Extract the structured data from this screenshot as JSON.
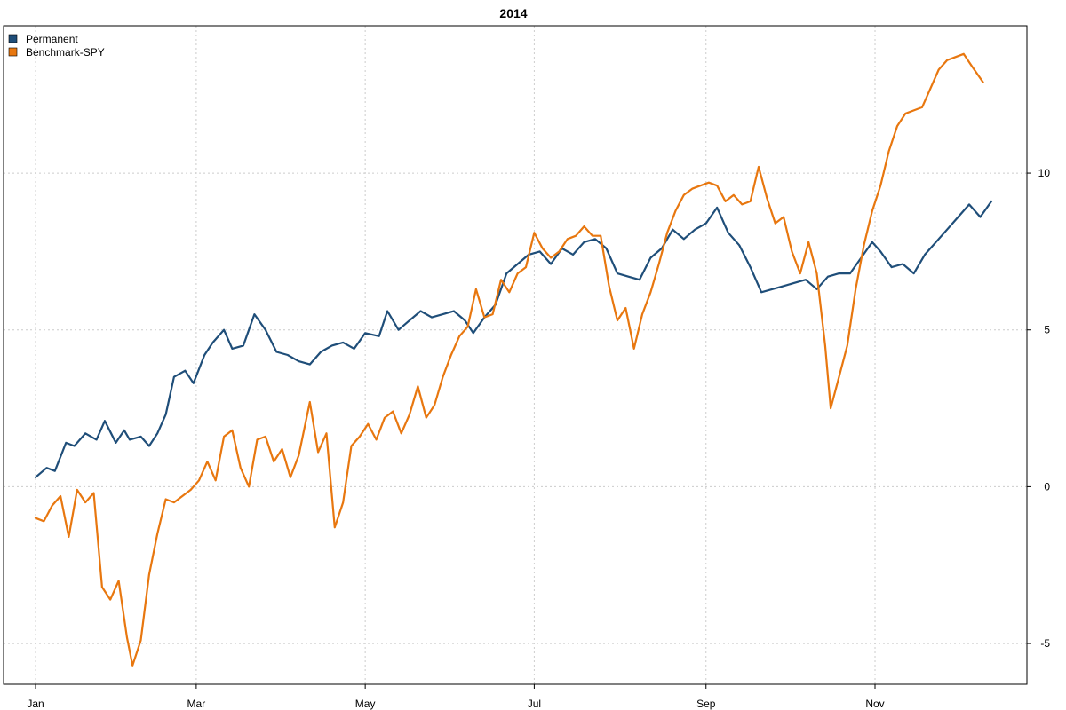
{
  "chart_data": {
    "type": "line",
    "title": "2014",
    "xlabel": "",
    "ylabel": "",
    "x_ticks": [
      "Jan",
      "Mar",
      "May",
      "Jul",
      "Sep",
      "Nov"
    ],
    "y_ticks": [
      -5,
      0,
      5,
      10
    ],
    "ylim": [
      -6.3,
      14.7
    ],
    "y_axis_side": "right",
    "grid": true,
    "legend_position": "top-left",
    "series": [
      {
        "name": "Permanent",
        "color": "#1f4e79",
        "points": [
          [
            "2014-01-02",
            0.3
          ],
          [
            "2014-01-06",
            0.6
          ],
          [
            "2014-01-09",
            0.5
          ],
          [
            "2014-01-13",
            1.4
          ],
          [
            "2014-01-16",
            1.3
          ],
          [
            "2014-01-20",
            1.7
          ],
          [
            "2014-01-24",
            1.5
          ],
          [
            "2014-01-27",
            2.1
          ],
          [
            "2014-01-31",
            1.4
          ],
          [
            "2014-02-03",
            1.8
          ],
          [
            "2014-02-05",
            1.5
          ],
          [
            "2014-02-09",
            1.6
          ],
          [
            "2014-02-12",
            1.3
          ],
          [
            "2014-02-15",
            1.7
          ],
          [
            "2014-02-18",
            2.3
          ],
          [
            "2014-02-21",
            3.5
          ],
          [
            "2014-02-25",
            3.7
          ],
          [
            "2014-02-28",
            3.3
          ],
          [
            "2014-03-04",
            4.2
          ],
          [
            "2014-03-07",
            4.6
          ],
          [
            "2014-03-11",
            5.0
          ],
          [
            "2014-03-14",
            4.4
          ],
          [
            "2014-03-18",
            4.5
          ],
          [
            "2014-03-22",
            5.5
          ],
          [
            "2014-03-26",
            5.0
          ],
          [
            "2014-03-30",
            4.3
          ],
          [
            "2014-04-03",
            4.2
          ],
          [
            "2014-04-07",
            4.0
          ],
          [
            "2014-04-11",
            3.9
          ],
          [
            "2014-04-15",
            4.3
          ],
          [
            "2014-04-19",
            4.5
          ],
          [
            "2014-04-23",
            4.6
          ],
          [
            "2014-04-27",
            4.4
          ],
          [
            "2014-05-01",
            4.9
          ],
          [
            "2014-05-06",
            4.8
          ],
          [
            "2014-05-09",
            5.6
          ],
          [
            "2014-05-13",
            5.0
          ],
          [
            "2014-05-17",
            5.3
          ],
          [
            "2014-05-21",
            5.6
          ],
          [
            "2014-05-25",
            5.4
          ],
          [
            "2014-05-29",
            5.5
          ],
          [
            "2014-06-02",
            5.6
          ],
          [
            "2014-06-06",
            5.3
          ],
          [
            "2014-06-09",
            4.9
          ],
          [
            "2014-06-13",
            5.4
          ],
          [
            "2014-06-17",
            5.8
          ],
          [
            "2014-06-21",
            6.8
          ],
          [
            "2014-06-25",
            7.1
          ],
          [
            "2014-06-29",
            7.4
          ],
          [
            "2014-07-03",
            7.5
          ],
          [
            "2014-07-07",
            7.1
          ],
          [
            "2014-07-11",
            7.6
          ],
          [
            "2014-07-15",
            7.4
          ],
          [
            "2014-07-19",
            7.8
          ],
          [
            "2014-07-23",
            7.9
          ],
          [
            "2014-07-27",
            7.6
          ],
          [
            "2014-07-31",
            6.8
          ],
          [
            "2014-08-04",
            6.7
          ],
          [
            "2014-08-08",
            6.6
          ],
          [
            "2014-08-12",
            7.3
          ],
          [
            "2014-08-16",
            7.6
          ],
          [
            "2014-08-20",
            8.2
          ],
          [
            "2014-08-24",
            7.9
          ],
          [
            "2014-08-28",
            8.2
          ],
          [
            "2014-09-01",
            8.4
          ],
          [
            "2014-09-05",
            8.9
          ],
          [
            "2014-09-09",
            8.1
          ],
          [
            "2014-09-13",
            7.7
          ],
          [
            "2014-09-17",
            7.0
          ],
          [
            "2014-09-21",
            6.2
          ],
          [
            "2014-09-25",
            6.3
          ],
          [
            "2014-09-29",
            6.4
          ],
          [
            "2014-10-03",
            6.5
          ],
          [
            "2014-10-07",
            6.6
          ],
          [
            "2014-10-11",
            6.3
          ],
          [
            "2014-10-15",
            6.7
          ],
          [
            "2014-10-19",
            6.8
          ],
          [
            "2014-10-23",
            6.8
          ],
          [
            "2014-10-27",
            7.3
          ],
          [
            "2014-10-31",
            7.8
          ],
          [
            "2014-11-03",
            7.5
          ],
          [
            "2014-11-07",
            7.0
          ],
          [
            "2014-11-11",
            7.1
          ],
          [
            "2014-11-15",
            6.8
          ],
          [
            "2014-11-19",
            7.4
          ],
          [
            "2014-11-23",
            7.8
          ],
          [
            "2014-11-27",
            8.2
          ],
          [
            "2014-12-01",
            8.6
          ],
          [
            "2014-12-05",
            9.0
          ],
          [
            "2014-12-09",
            8.6
          ],
          [
            "2014-12-13",
            9.1
          ]
        ]
      },
      {
        "name": "Benchmark-SPY",
        "color": "#e8770f",
        "points": [
          [
            "2014-01-02",
            -1.0
          ],
          [
            "2014-01-05",
            -1.1
          ],
          [
            "2014-01-08",
            -0.6
          ],
          [
            "2014-01-11",
            -0.3
          ],
          [
            "2014-01-14",
            -1.6
          ],
          [
            "2014-01-17",
            -0.1
          ],
          [
            "2014-01-20",
            -0.5
          ],
          [
            "2014-01-23",
            -0.2
          ],
          [
            "2014-01-26",
            -3.2
          ],
          [
            "2014-01-29",
            -3.6
          ],
          [
            "2014-02-01",
            -3.0
          ],
          [
            "2014-02-04",
            -4.8
          ],
          [
            "2014-02-06",
            -5.7
          ],
          [
            "2014-02-09",
            -4.9
          ],
          [
            "2014-02-12",
            -2.8
          ],
          [
            "2014-02-15",
            -1.5
          ],
          [
            "2014-02-18",
            -0.4
          ],
          [
            "2014-02-21",
            -0.5
          ],
          [
            "2014-02-24",
            -0.3
          ],
          [
            "2014-02-27",
            -0.1
          ],
          [
            "2014-03-02",
            0.2
          ],
          [
            "2014-03-05",
            0.8
          ],
          [
            "2014-03-08",
            0.2
          ],
          [
            "2014-03-11",
            1.6
          ],
          [
            "2014-03-14",
            1.8
          ],
          [
            "2014-03-17",
            0.6
          ],
          [
            "2014-03-20",
            0.0
          ],
          [
            "2014-03-23",
            1.5
          ],
          [
            "2014-03-26",
            1.6
          ],
          [
            "2014-03-29",
            0.8
          ],
          [
            "2014-04-01",
            1.2
          ],
          [
            "2014-04-04",
            0.3
          ],
          [
            "2014-04-07",
            1.0
          ],
          [
            "2014-04-11",
            2.7
          ],
          [
            "2014-04-14",
            1.1
          ],
          [
            "2014-04-17",
            1.7
          ],
          [
            "2014-04-20",
            -1.3
          ],
          [
            "2014-04-23",
            -0.5
          ],
          [
            "2014-04-26",
            1.3
          ],
          [
            "2014-04-29",
            1.6
          ],
          [
            "2014-05-02",
            2.0
          ],
          [
            "2014-05-05",
            1.5
          ],
          [
            "2014-05-08",
            2.2
          ],
          [
            "2014-05-11",
            2.4
          ],
          [
            "2014-05-14",
            1.7
          ],
          [
            "2014-05-17",
            2.3
          ],
          [
            "2014-05-20",
            3.2
          ],
          [
            "2014-05-23",
            2.2
          ],
          [
            "2014-05-26",
            2.6
          ],
          [
            "2014-05-29",
            3.5
          ],
          [
            "2014-06-01",
            4.2
          ],
          [
            "2014-06-04",
            4.8
          ],
          [
            "2014-06-07",
            5.1
          ],
          [
            "2014-06-10",
            6.3
          ],
          [
            "2014-06-13",
            5.4
          ],
          [
            "2014-06-16",
            5.5
          ],
          [
            "2014-06-19",
            6.6
          ],
          [
            "2014-06-22",
            6.2
          ],
          [
            "2014-06-25",
            6.8
          ],
          [
            "2014-06-28",
            7.0
          ],
          [
            "2014-07-01",
            8.1
          ],
          [
            "2014-07-04",
            7.6
          ],
          [
            "2014-07-07",
            7.3
          ],
          [
            "2014-07-10",
            7.5
          ],
          [
            "2014-07-13",
            7.9
          ],
          [
            "2014-07-16",
            8.0
          ],
          [
            "2014-07-19",
            8.3
          ],
          [
            "2014-07-22",
            8.0
          ],
          [
            "2014-07-25",
            8.0
          ],
          [
            "2014-07-28",
            6.4
          ],
          [
            "2014-07-31",
            5.3
          ],
          [
            "2014-08-03",
            5.7
          ],
          [
            "2014-08-06",
            4.4
          ],
          [
            "2014-08-09",
            5.5
          ],
          [
            "2014-08-12",
            6.2
          ],
          [
            "2014-08-15",
            7.1
          ],
          [
            "2014-08-18",
            8.1
          ],
          [
            "2014-08-21",
            8.8
          ],
          [
            "2014-08-24",
            9.3
          ],
          [
            "2014-08-27",
            9.5
          ],
          [
            "2014-08-30",
            9.6
          ],
          [
            "2014-09-02",
            9.7
          ],
          [
            "2014-09-05",
            9.6
          ],
          [
            "2014-09-08",
            9.1
          ],
          [
            "2014-09-11",
            9.3
          ],
          [
            "2014-09-14",
            9.0
          ],
          [
            "2014-09-17",
            9.1
          ],
          [
            "2014-09-20",
            10.2
          ],
          [
            "2014-09-23",
            9.2
          ],
          [
            "2014-09-26",
            8.4
          ],
          [
            "2014-09-29",
            8.6
          ],
          [
            "2014-10-02",
            7.5
          ],
          [
            "2014-10-05",
            6.8
          ],
          [
            "2014-10-08",
            7.8
          ],
          [
            "2014-10-11",
            6.8
          ],
          [
            "2014-10-14",
            4.5
          ],
          [
            "2014-10-16",
            2.5
          ],
          [
            "2014-10-19",
            3.5
          ],
          [
            "2014-10-22",
            4.5
          ],
          [
            "2014-10-25",
            6.3
          ],
          [
            "2014-10-28",
            7.7
          ],
          [
            "2014-10-31",
            8.8
          ],
          [
            "2014-11-03",
            9.6
          ],
          [
            "2014-11-06",
            10.7
          ],
          [
            "2014-11-09",
            11.5
          ],
          [
            "2014-11-12",
            11.9
          ],
          [
            "2014-11-15",
            12.0
          ],
          [
            "2014-11-18",
            12.1
          ],
          [
            "2014-11-21",
            12.7
          ],
          [
            "2014-11-24",
            13.3
          ],
          [
            "2014-11-27",
            13.6
          ],
          [
            "2014-11-30",
            13.7
          ],
          [
            "2014-12-03",
            13.8
          ],
          [
            "2014-12-06",
            13.4
          ],
          [
            "2014-12-10",
            12.9
          ]
        ]
      }
    ]
  }
}
